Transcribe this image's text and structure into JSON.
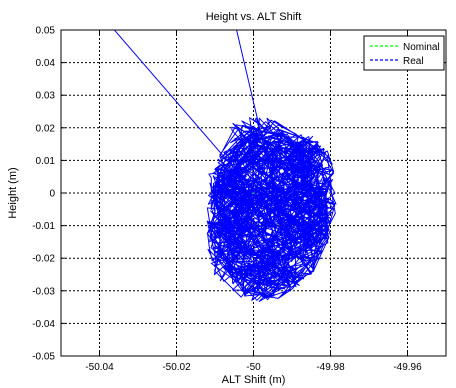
{
  "chart_data": {
    "type": "line",
    "title": "Height vs. ALT Shift",
    "xlabel": "ALT Shift (m)",
    "ylabel": "Height (m)",
    "xlim": [
      -50.05,
      -49.95
    ],
    "ylim": [
      -0.05,
      0.05
    ],
    "xticks": [
      -50.04,
      -50.02,
      -50,
      -49.98,
      -49.96
    ],
    "yticks": [
      -0.05,
      -0.04,
      -0.03,
      -0.02,
      -0.01,
      0,
      0.01,
      0.02,
      0.03,
      0.04,
      0.05
    ],
    "xtick_labels": [
      "-50.04",
      "-50.02",
      "-50",
      "-49.98",
      "-49.96"
    ],
    "ytick_labels": [
      "-0.05",
      "-0.04",
      "-0.03",
      "-0.02",
      "-0.01",
      "0",
      "0.01",
      "0.02",
      "0.03",
      "0.04",
      "0.05"
    ],
    "grid": true,
    "legend_position": "top-right",
    "series": [
      {
        "name": "Nominal",
        "color": "#00ff00",
        "x": [
          -50.0,
          -50.0
        ],
        "y": [
          0.0,
          0.0
        ]
      },
      {
        "name": "Real",
        "color": "#0000ff",
        "x": [
          -50.0365,
          -50.012,
          -50.006,
          -50.004,
          -49.998,
          -49.9935,
          -49.992,
          -49.9845,
          -49.9805,
          -49.9785,
          -49.9785,
          -49.98,
          -49.9825,
          -49.987,
          -49.9905,
          -49.9955,
          -50.0,
          -50.0045,
          -50.0085,
          -50.0115,
          -50.0125,
          -50.012,
          -50.0115,
          -50.0035,
          -50.0045
        ],
        "y": [
          0.0505,
          0.0195,
          0.021,
          0.0225,
          0.024,
          0.022,
          0.0185,
          0.0175,
          0.0135,
          0.005,
          -0.005,
          -0.013,
          -0.022,
          -0.0275,
          -0.0305,
          -0.0335,
          -0.035,
          -0.031,
          -0.028,
          -0.0235,
          -0.015,
          -0.004,
          0.008,
          0.019,
          0.0505
        ]
      }
    ]
  }
}
